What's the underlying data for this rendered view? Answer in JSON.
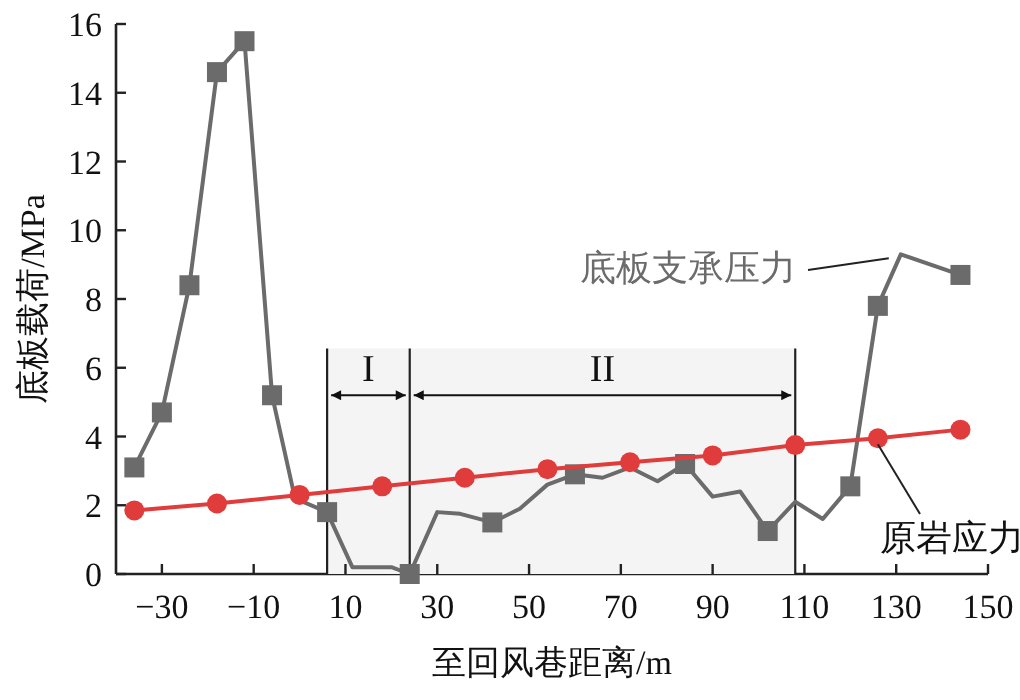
{
  "chart_data": {
    "type": "line",
    "xlabel": "至回风巷距离/m",
    "ylabel": "底板载荷/MPa",
    "xlim": [
      -40,
      150
    ],
    "xticks": [
      {
        "value": -30,
        "label": "−30"
      },
      {
        "value": -10,
        "label": "−10"
      },
      10,
      30,
      50,
      70,
      90,
      110,
      130,
      150
    ],
    "ylim": [
      0,
      16
    ],
    "yticks": [
      0,
      2,
      4,
      6,
      8,
      10,
      12,
      14,
      16
    ],
    "grid": false,
    "legend": false,
    "series": [
      {
        "name": "底板支承压力",
        "type": "line",
        "marker": "none",
        "color": "#6b6b6b",
        "x": [
          -36,
          -30,
          -24,
          -18,
          -12,
          -6,
          -1,
          6,
          11.5,
          20,
          24,
          30,
          35,
          42,
          48,
          54,
          60,
          66,
          72,
          78,
          84,
          90,
          96,
          102,
          108,
          114,
          120,
          126,
          131,
          144
        ],
        "values": [
          3.1,
          4.7,
          8.4,
          14.6,
          15.5,
          5.2,
          2.2,
          1.8,
          0.2,
          0.2,
          0,
          1.8,
          1.75,
          1.5,
          1.9,
          2.6,
          2.9,
          2.8,
          3.1,
          2.7,
          3.2,
          2.25,
          2.4,
          1.25,
          2.1,
          1.6,
          2.55,
          7.8,
          9.3,
          8.7
        ]
      },
      {
        "type": "scatter",
        "marker": "square",
        "color": "#6b6b6b",
        "x": [
          -36,
          -30,
          -24,
          -18,
          -12,
          -6,
          6,
          24,
          42,
          60,
          84,
          102,
          120,
          126,
          144
        ],
        "values": [
          3.1,
          4.7,
          8.4,
          14.6,
          15.5,
          5.2,
          1.8,
          0,
          1.5,
          2.9,
          3.2,
          1.25,
          2.55,
          7.8,
          8.7
        ]
      },
      {
        "name": "原岩应力",
        "type": "line",
        "marker": "circle",
        "color": "#e03c3c",
        "x": [
          -36,
          -18,
          0,
          18,
          36,
          54,
          72,
          90,
          108,
          126,
          144
        ],
        "values": [
          1.85,
          2.05,
          2.3,
          2.55,
          2.8,
          3.05,
          3.25,
          3.45,
          3.75,
          3.95,
          4.2
        ]
      }
    ],
    "ref_lines": [
      {
        "axis": "x",
        "value": 6
      },
      {
        "axis": "x",
        "value": 24
      },
      {
        "axis": "x",
        "value": 108
      }
    ],
    "bands": [
      {
        "axis": "x",
        "from": 6,
        "to": 24,
        "label": "I",
        "color": "#f4f4f4"
      },
      {
        "axis": "x",
        "from": 24,
        "to": 108,
        "label": "II",
        "color": "#f4f4f4"
      }
    ]
  }
}
